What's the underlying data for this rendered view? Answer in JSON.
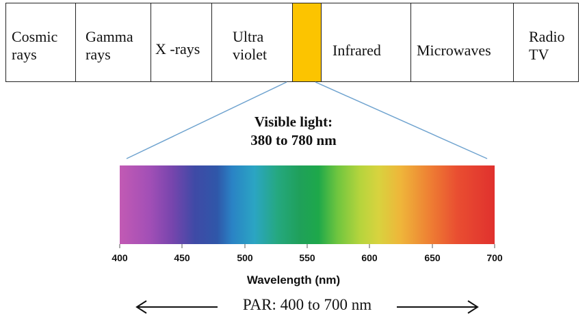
{
  "bands": [
    {
      "label": "Cosmic\nrays"
    },
    {
      "label": "Gamma\nrays"
    },
    {
      "label": "X -rays"
    },
    {
      "label": "Ultra\nviolet"
    },
    {
      "label": ""
    },
    {
      "label": "Infrared"
    },
    {
      "label": "Microwaves"
    },
    {
      "label": "Radio\nTV"
    }
  ],
  "visible_color": "#fcc400",
  "visible_caption": {
    "line1": "Visible light:",
    "line2": "380 to 780 nm"
  },
  "axis": {
    "ticks": [
      "400",
      "450",
      "500",
      "550",
      "600",
      "650",
      "700"
    ],
    "xlabel": "Wavelength (nm)",
    "range": [
      400,
      700
    ]
  },
  "par_label": "PAR: 400 to 700 nm"
}
